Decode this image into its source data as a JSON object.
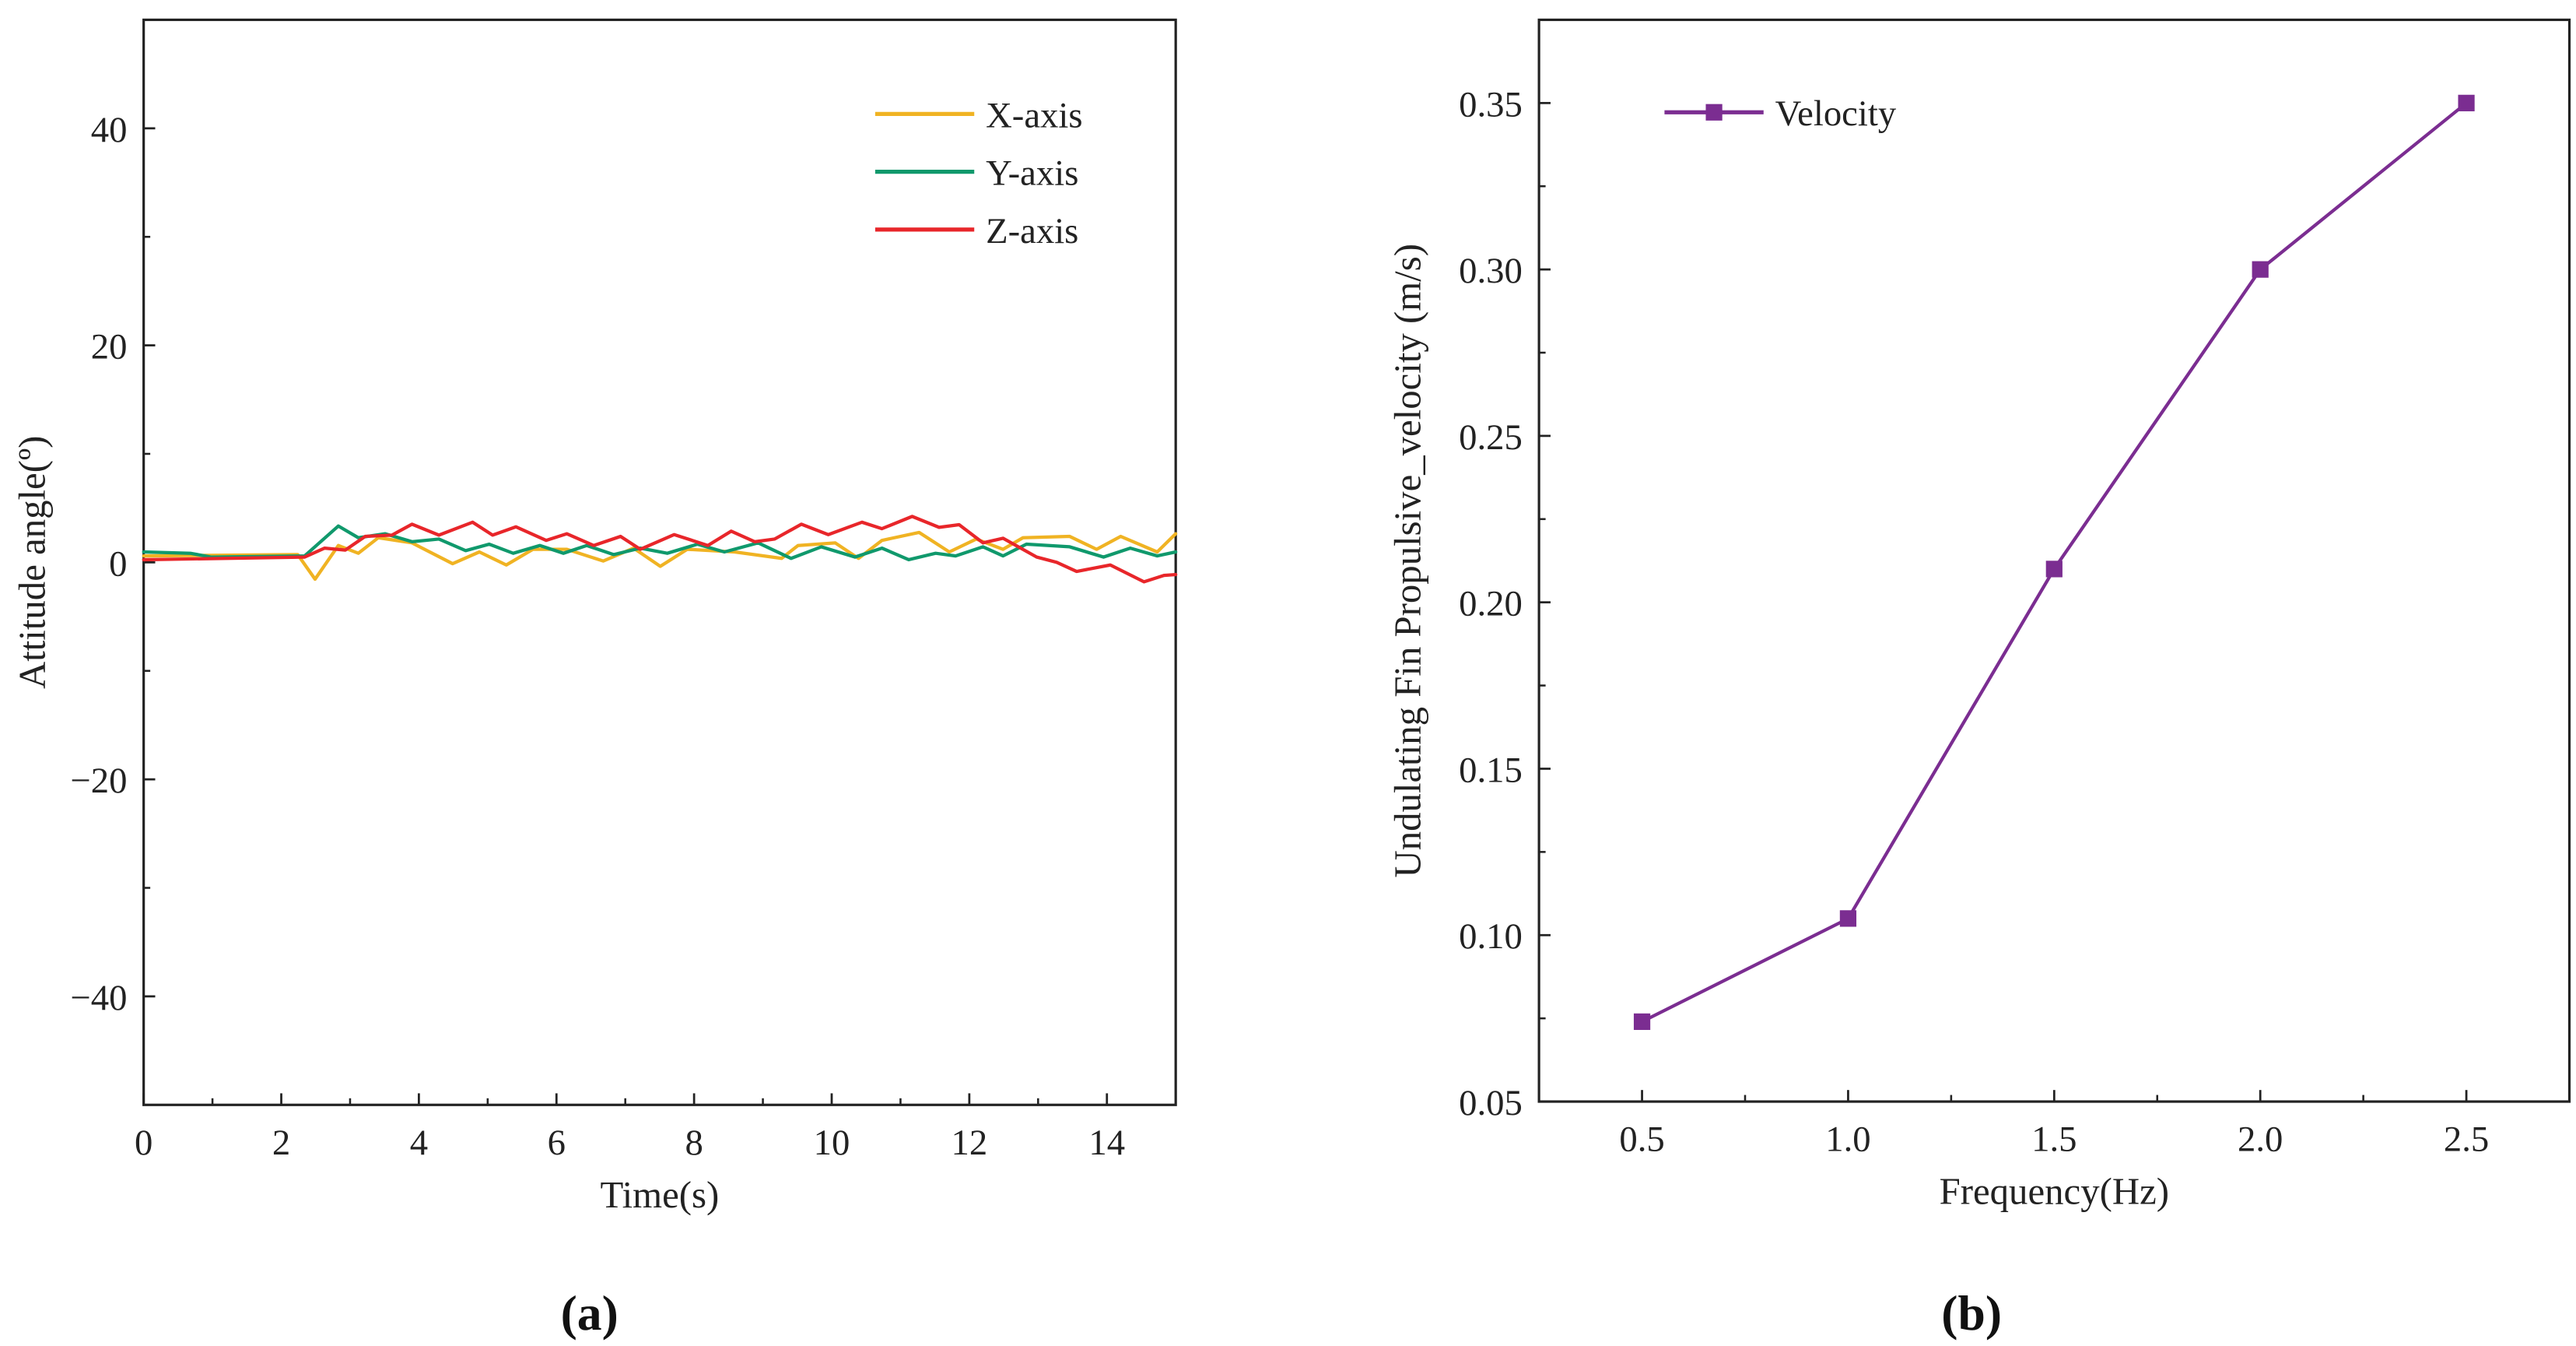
{
  "chart_data": [
    {
      "id": "a",
      "type": "line",
      "panel_label": "(a)",
      "panel_letter": "a",
      "title": "",
      "xlabel": "Time(s)",
      "ylabel": "Attitude angle(º)",
      "xlim": [
        0,
        15
      ],
      "ylim": [
        -50,
        50
      ],
      "xticks": [
        0,
        2,
        4,
        6,
        8,
        10,
        12,
        14
      ],
      "xtick_labels": [
        "0",
        "2",
        "4",
        "6",
        "8",
        "10",
        "12",
        "14"
      ],
      "yticks": [
        -40,
        -20,
        0,
        20,
        40
      ],
      "ytick_labels": [
        "−40",
        "−20",
        "0",
        "20",
        "40"
      ],
      "legend_position": "top-right",
      "series": [
        {
          "name": "X-axis",
          "color": "#f0b323",
          "x": [
            0,
            2.24,
            2.49,
            2.83,
            3.12,
            3.41,
            3.9,
            4.49,
            4.88,
            5.27,
            5.66,
            6.15,
            6.68,
            7.12,
            7.51,
            7.9,
            8.59,
            9.27,
            9.51,
            10.05,
            10.39,
            10.73,
            11.27,
            11.71,
            12.1,
            12.49,
            12.78,
            13.46,
            13.85,
            14.2,
            14.73,
            15.0
          ],
          "y": [
            0.6,
            0.72,
            -1.55,
            1.55,
            0.84,
            2.27,
            1.79,
            -0.12,
            0.96,
            -0.24,
            1.2,
            1.2,
            0.12,
            1.31,
            -0.36,
            1.2,
            0.96,
            0.36,
            1.55,
            1.79,
            0.36,
            2.03,
            2.75,
            0.96,
            2.15,
            1.2,
            2.27,
            2.39,
            1.2,
            2.39,
            0.96,
            2.63
          ]
        },
        {
          "name": "Y-axis",
          "color": "#10996c",
          "x": [
            0,
            0.68,
            0.98,
            2.34,
            2.83,
            3.12,
            3.51,
            3.9,
            4.29,
            4.68,
            5.02,
            5.37,
            5.76,
            6.1,
            6.44,
            6.83,
            7.22,
            7.61,
            8.05,
            8.44,
            8.93,
            9.41,
            9.85,
            10.34,
            10.73,
            11.12,
            11.51,
            11.8,
            12.2,
            12.49,
            12.83,
            13.46,
            13.95,
            14.34,
            14.73,
            15.0
          ],
          "y": [
            0.96,
            0.84,
            0.48,
            0.6,
            3.35,
            2.27,
            2.63,
            1.91,
            2.15,
            1.08,
            1.67,
            0.84,
            1.55,
            0.84,
            1.55,
            0.72,
            1.31,
            0.84,
            1.67,
            0.96,
            1.79,
            0.36,
            1.43,
            0.48,
            1.31,
            0.24,
            0.84,
            0.6,
            1.43,
            0.6,
            1.67,
            1.43,
            0.48,
            1.31,
            0.6,
            0.96
          ]
        },
        {
          "name": "Z-axis",
          "color": "#e8262a",
          "x": [
            0,
            2.34,
            2.63,
            2.93,
            3.22,
            3.61,
            3.9,
            4.29,
            4.78,
            5.07,
            5.41,
            5.85,
            6.15,
            6.54,
            6.93,
            7.22,
            7.71,
            8.2,
            8.54,
            8.88,
            9.17,
            9.56,
            9.95,
            10.44,
            10.73,
            11.17,
            11.56,
            11.85,
            12.2,
            12.49,
            12.98,
            13.27,
            13.56,
            14.05,
            14.54,
            14.83,
            15.0
          ],
          "y": [
            0.24,
            0.48,
            1.31,
            1.12,
            2.39,
            2.51,
            3.51,
            2.51,
            3.7,
            2.51,
            3.27,
            2.03,
            2.63,
            1.55,
            2.39,
            1.2,
            2.56,
            1.55,
            2.87,
            1.91,
            2.15,
            3.51,
            2.56,
            3.7,
            3.11,
            4.23,
            3.23,
            3.47,
            1.79,
            2.22,
            0.48,
            0.0,
            -0.84,
            -0.24,
            -1.79,
            -1.2,
            -1.12
          ]
        }
      ]
    },
    {
      "id": "b",
      "type": "line",
      "panel_label": "(b)",
      "panel_letter": "b",
      "title": "",
      "xlabel": "Frequency(Hz)",
      "ylabel": "Undulating Fin Propulsive_velocity (m/s)",
      "xlim": [
        0.25,
        2.75
      ],
      "ylim": [
        0.05,
        0.375
      ],
      "xticks": [
        0.5,
        1.0,
        1.5,
        2.0,
        2.5
      ],
      "xtick_labels": [
        "0.5",
        "1.0",
        "1.5",
        "2.0",
        "2.5"
      ],
      "yticks": [
        0.05,
        0.1,
        0.15,
        0.2,
        0.25,
        0.3,
        0.35
      ],
      "ytick_labels": [
        "0.05",
        "0.10",
        "0.15",
        "0.20",
        "0.25",
        "0.30",
        "0.35"
      ],
      "legend_position": "top-left",
      "series": [
        {
          "name": "Velocity",
          "color": "#7b2d91",
          "marker": "square",
          "x": [
            0.5,
            1.0,
            1.5,
            2.0,
            2.5
          ],
          "y": [
            0.074,
            0.105,
            0.21,
            0.3,
            0.35
          ]
        }
      ]
    }
  ]
}
